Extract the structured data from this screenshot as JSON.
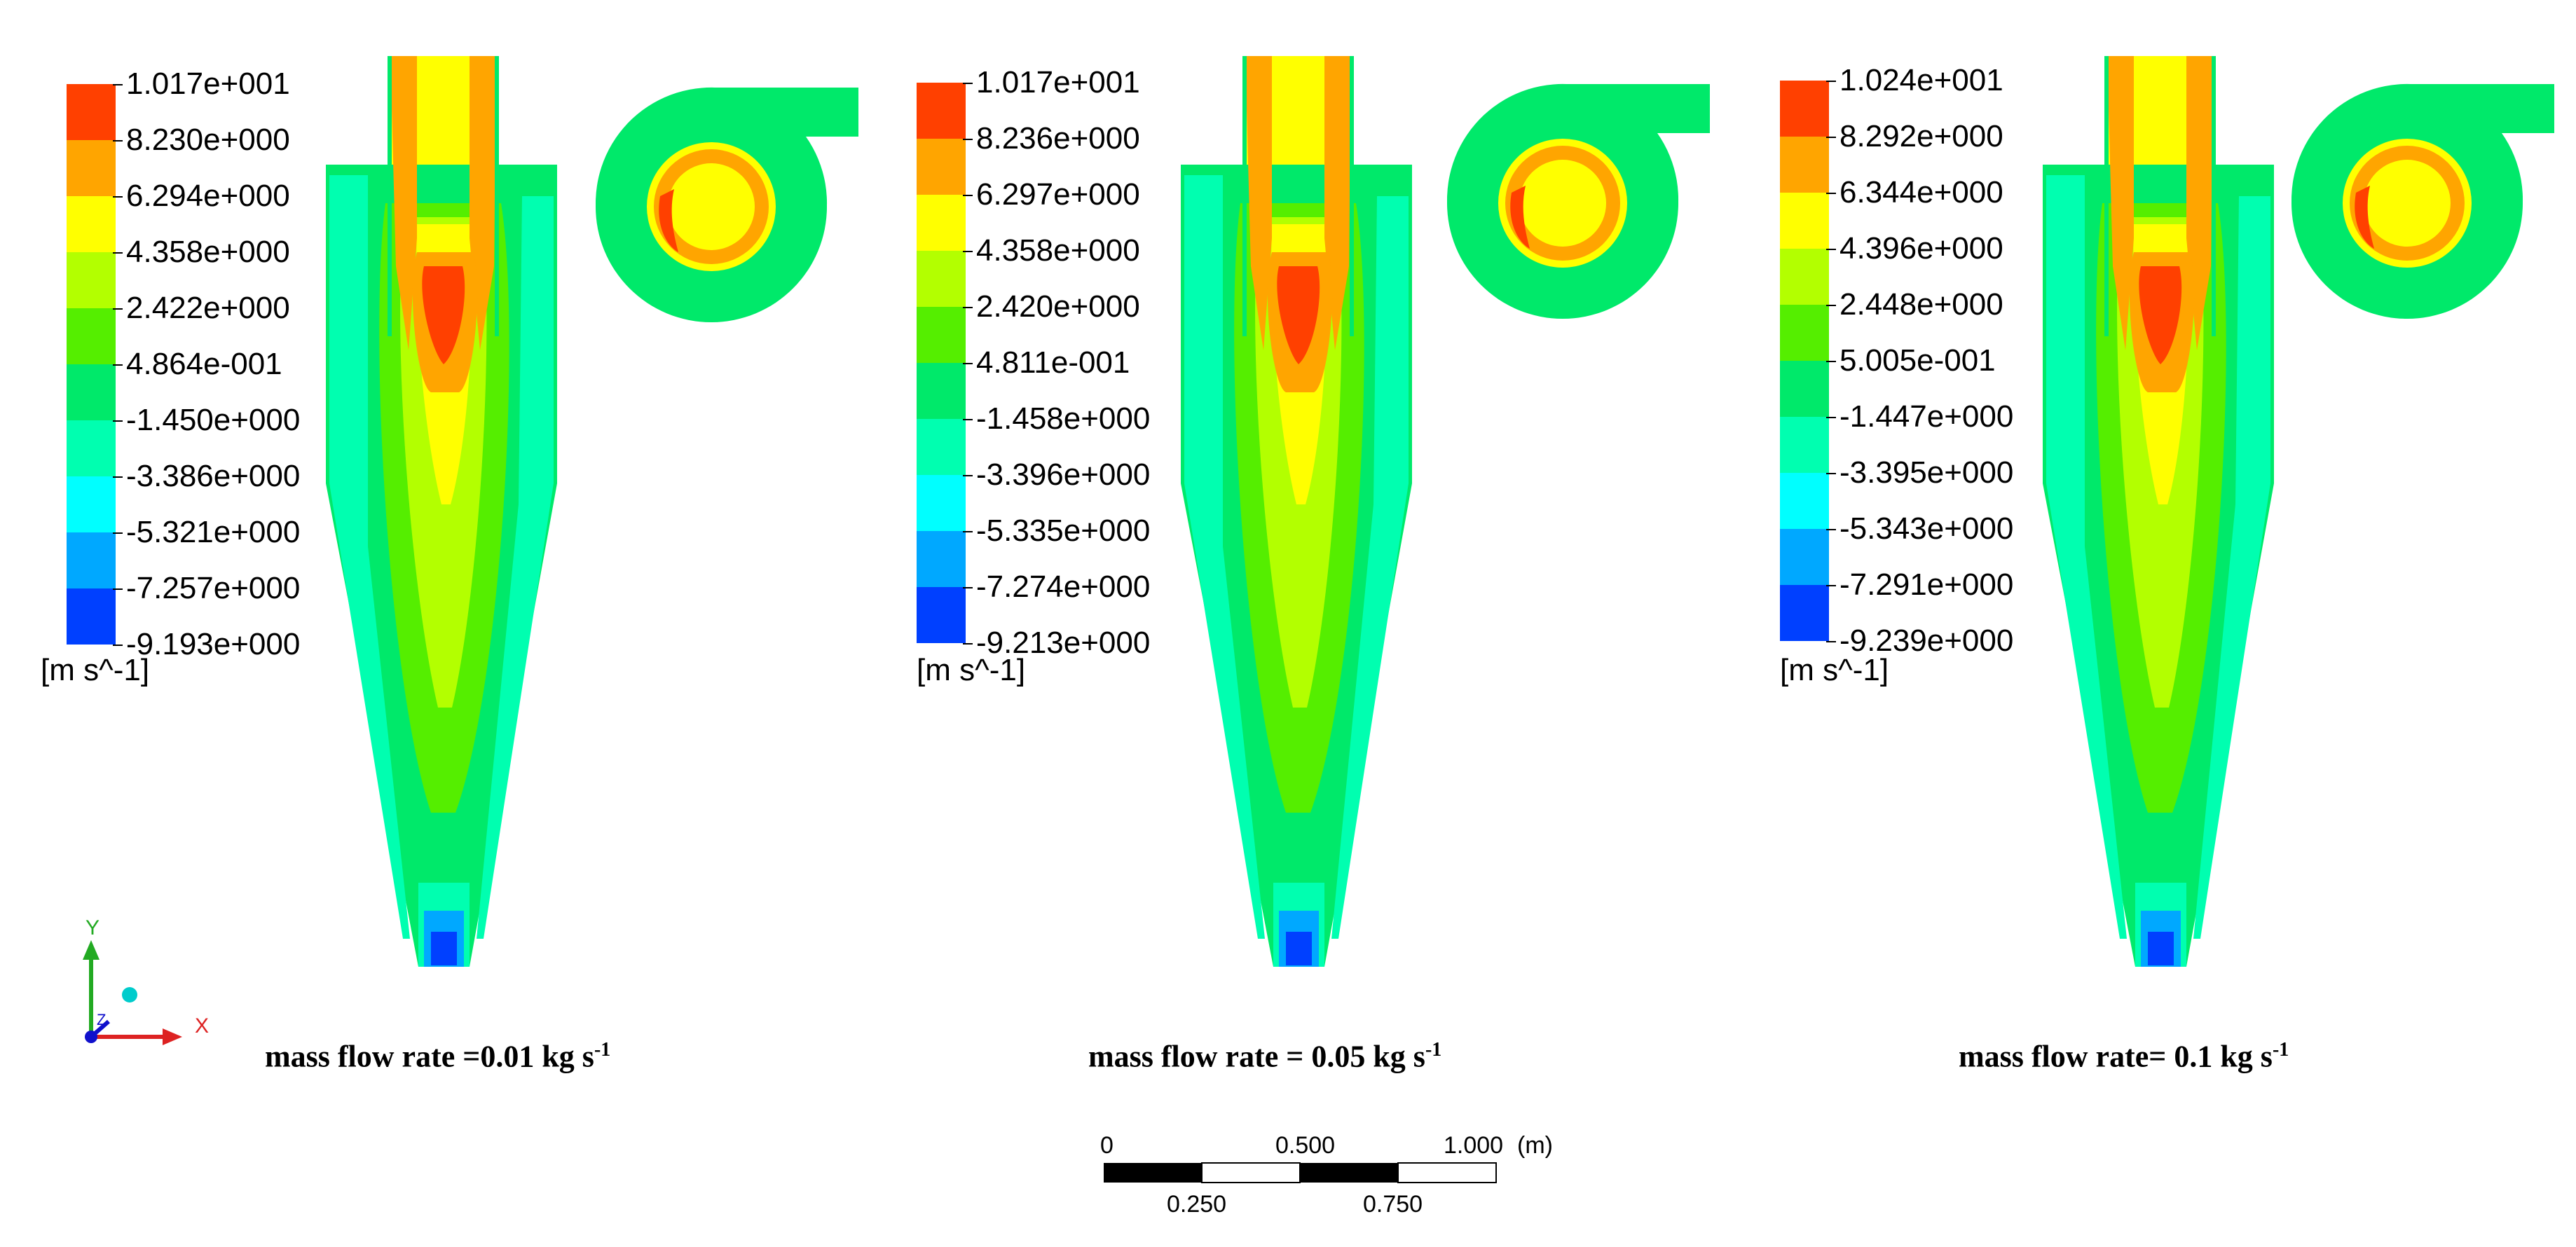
{
  "colors": {
    "band_colors": [
      "#ff4000",
      "#ffa500",
      "#ffff00",
      "#b3ff00",
      "#55ee00",
      "#00e96a",
      "#00ffb0",
      "#00ffff",
      "#00a8ff",
      "#0040ff"
    ],
    "outline": "#000000",
    "axis_y": "#22aa22",
    "axis_x": "#dd2222",
    "axis_z": "#1010cc",
    "origin_dot": "#00cccc"
  },
  "panels": [
    {
      "legend": {
        "labels": [
          "1.017e+001",
          "8.230e+000",
          "6.294e+000",
          "4.358e+000",
          "2.422e+000",
          "4.864e-001",
          "-1.450e+000",
          "-3.386e+000",
          "-5.321e+000",
          "-7.257e+000",
          "-9.193e+000"
        ],
        "unit": "[m s^-1]"
      },
      "caption": {
        "text": "mass flow rate =0.01 kg s",
        "sup": "-1"
      }
    },
    {
      "legend": {
        "labels": [
          "1.017e+001",
          "8.236e+000",
          "6.297e+000",
          "4.358e+000",
          "2.420e+000",
          "4.811e-001",
          "-1.458e+000",
          "-3.396e+000",
          "-5.335e+000",
          "-7.274e+000",
          "-9.213e+000"
        ],
        "unit": "[m s^-1]"
      },
      "caption": {
        "text": "mass flow rate = 0.05 kg s",
        "sup": "-1"
      }
    },
    {
      "legend": {
        "labels": [
          "1.024e+001",
          "8.292e+000",
          "6.344e+000",
          "4.396e+000",
          "2.448e+000",
          "5.005e-001",
          "-1.447e+000",
          "-3.395e+000",
          "-5.343e+000",
          "-7.291e+000",
          "-9.239e+000"
        ],
        "unit": "[m s^-1]"
      },
      "caption": {
        "text": "mass flow rate= 0.1 kg s",
        "sup": "-1"
      }
    }
  ],
  "triad": {
    "y": "Y",
    "x": "X",
    "z": "Z"
  },
  "scale_bar": {
    "top_labels": [
      "0",
      "0.500",
      "1.000",
      "(m)"
    ],
    "bottom_labels": [
      "0.250",
      "0.750"
    ]
  }
}
